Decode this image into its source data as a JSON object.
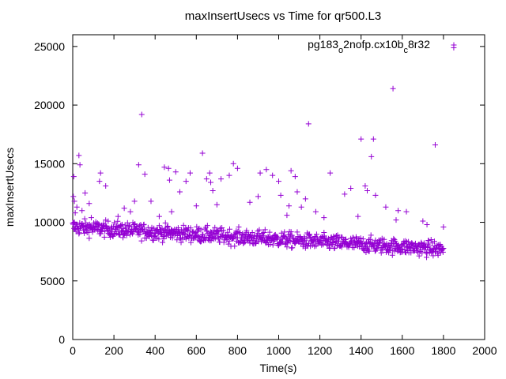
{
  "chart_data": {
    "type": "scatter",
    "title": "maxInsertUsecs vs Time for qr500.L3",
    "xlabel": "Time(s)",
    "ylabel": "maxInsertUsecs",
    "xlim": [
      0,
      2000
    ],
    "ylim": [
      0,
      26000
    ],
    "xticks": [
      0,
      200,
      400,
      600,
      800,
      1000,
      1200,
      1400,
      1600,
      1800,
      2000
    ],
    "yticks": [
      0,
      5000,
      10000,
      15000,
      20000,
      25000
    ],
    "legend_position": "top-right",
    "marker": "+",
    "series": [
      {
        "name": "pg183_o2nofp.cx10b_c8r32",
        "legend_parts": [
          {
            "text": "pg183",
            "sub": false
          },
          {
            "text": "o",
            "sub": true
          },
          {
            "text": "2nofp.cx10b",
            "sub": false
          },
          {
            "text": "c",
            "sub": true
          },
          {
            "text": "8r32",
            "sub": false
          }
        ],
        "color": "#9400d3",
        "baseline": {
          "start_time": 0,
          "end_time": 1800,
          "interval": 2,
          "mean_start": 9600,
          "mean_end": 7700,
          "spread": 550
        },
        "outliers": [
          [
            3,
            12200
          ],
          [
            5,
            13900
          ],
          [
            8,
            11800
          ],
          [
            12,
            10800
          ],
          [
            20,
            11300
          ],
          [
            30,
            15700
          ],
          [
            35,
            14900
          ],
          [
            45,
            11000
          ],
          [
            60,
            12500
          ],
          [
            80,
            11600
          ],
          [
            90,
            10400
          ],
          [
            130,
            13500
          ],
          [
            135,
            14200
          ],
          [
            160,
            13100
          ],
          [
            220,
            10500
          ],
          [
            250,
            11200
          ],
          [
            280,
            10900
          ],
          [
            300,
            11800
          ],
          [
            320,
            14900
          ],
          [
            335,
            19200
          ],
          [
            350,
            14100
          ],
          [
            380,
            11800
          ],
          [
            420,
            10500
          ],
          [
            445,
            14700
          ],
          [
            465,
            14600
          ],
          [
            470,
            13600
          ],
          [
            480,
            10900
          ],
          [
            500,
            14300
          ],
          [
            520,
            12600
          ],
          [
            550,
            13500
          ],
          [
            570,
            14200
          ],
          [
            600,
            11400
          ],
          [
            630,
            15900
          ],
          [
            650,
            13700
          ],
          [
            665,
            14200
          ],
          [
            670,
            13400
          ],
          [
            680,
            12700
          ],
          [
            700,
            11500
          ],
          [
            720,
            13700
          ],
          [
            760,
            14000
          ],
          [
            780,
            15000
          ],
          [
            800,
            14600
          ],
          [
            860,
            11700
          ],
          [
            900,
            12200
          ],
          [
            910,
            14200
          ],
          [
            940,
            14500
          ],
          [
            970,
            14000
          ],
          [
            1000,
            13500
          ],
          [
            1010,
            12300
          ],
          [
            1040,
            10600
          ],
          [
            1050,
            11400
          ],
          [
            1060,
            14400
          ],
          [
            1080,
            13900
          ],
          [
            1090,
            12600
          ],
          [
            1110,
            11300
          ],
          [
            1130,
            12000
          ],
          [
            1145,
            18400
          ],
          [
            1180,
            10900
          ],
          [
            1220,
            10400
          ],
          [
            1250,
            14200
          ],
          [
            1320,
            12400
          ],
          [
            1350,
            12900
          ],
          [
            1385,
            10500
          ],
          [
            1400,
            17100
          ],
          [
            1420,
            13100
          ],
          [
            1430,
            12700
          ],
          [
            1450,
            15600
          ],
          [
            1460,
            17100
          ],
          [
            1470,
            12300
          ],
          [
            1520,
            11300
          ],
          [
            1555,
            21400
          ],
          [
            1570,
            10200
          ],
          [
            1580,
            11000
          ],
          [
            1620,
            10900
          ],
          [
            1700,
            10100
          ],
          [
            1720,
            9800
          ],
          [
            1760,
            16600
          ],
          [
            1800,
            9600
          ],
          [
            1850,
            24900
          ]
        ]
      }
    ]
  }
}
